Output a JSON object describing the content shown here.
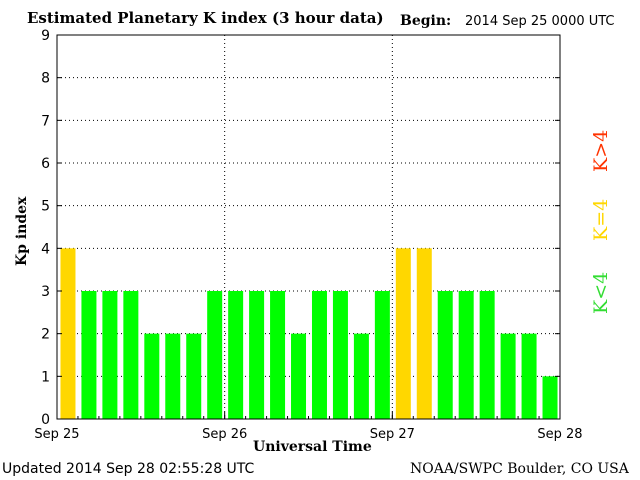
{
  "header": {
    "title": "Estimated Planetary K index (3 hour data)",
    "begin_label": "Begin:",
    "begin_value": "2014 Sep 25 0000 UTC"
  },
  "footer": {
    "updated": "Updated 2014 Sep 28 02:55:28 UTC",
    "source": "NOAA/SWPC Boulder, CO USA"
  },
  "legend": {
    "high": "K>4",
    "equal": "K=4",
    "low": "K<4"
  },
  "colors": {
    "low": "#00ff00",
    "equal": "#ffd700",
    "high": "#ff3300"
  },
  "chart_data": {
    "type": "bar",
    "title": "Estimated Planetary K index (3 hour data)",
    "ylabel": "Kp index",
    "xlabel": "Universal Time",
    "ylim": [
      0,
      9
    ],
    "yticks": [
      "0",
      "1",
      "2",
      "3",
      "4",
      "5",
      "6",
      "7",
      "8",
      "9"
    ],
    "xticks": [
      "Sep 25",
      "Sep 26",
      "Sep 27",
      "Sep 28"
    ],
    "grid": true,
    "values": [
      4,
      3,
      3,
      3,
      2,
      2,
      2,
      3,
      3,
      3,
      3,
      2,
      3,
      3,
      2,
      3,
      4,
      4,
      3,
      3,
      3,
      2,
      2,
      1
    ]
  }
}
